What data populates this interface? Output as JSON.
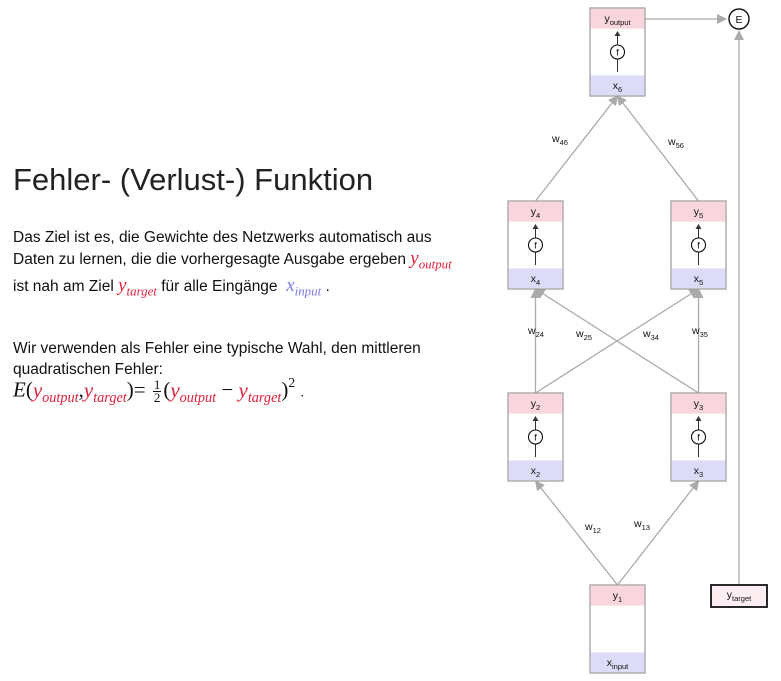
{
  "title": "Fehler- (Verlust-) Funktion",
  "paragraph1": {
    "text_a": "Das Ziel ist es, die Gewichte des Netzwerks automatisch aus Daten zu lernen, die die vorhergesagte Ausgabe ergeben",
    "y_output_base": "y",
    "y_output_sub": "output",
    "text_b": "ist nah am Ziel",
    "y_target_base": "y",
    "y_target_sub": "target",
    "text_c": "für alle Eingänge",
    "x_input_base": "x",
    "x_input_sub": "input",
    "text_d": "."
  },
  "paragraph2": {
    "text": "Wir verwenden als Fehler eine typische Wahl, den mittleren quadratischen Fehler:"
  },
  "formula": {
    "E": "E",
    "open": "(",
    "comma": ",",
    "close": ")=",
    "frac_num": "1",
    "frac_den": "2",
    "open2": "(",
    "minus": "−",
    "close2": ")",
    "power": "2",
    "end": "."
  },
  "diagram": {
    "nodes": [
      {
        "id": "n1",
        "top_base": "y",
        "top_sub": "1",
        "bottom_base": "x",
        "bottom_sub": "input",
        "has_f": false
      },
      {
        "id": "n2",
        "top_base": "y",
        "top_sub": "2",
        "bottom_base": "x",
        "bottom_sub": "2",
        "has_f": true
      },
      {
        "id": "n3",
        "top_base": "y",
        "top_sub": "3",
        "bottom_base": "x",
        "bottom_sub": "3",
        "has_f": true
      },
      {
        "id": "n4",
        "top_base": "y",
        "top_sub": "4",
        "bottom_base": "x",
        "bottom_sub": "4",
        "has_f": true
      },
      {
        "id": "n5",
        "top_base": "y",
        "top_sub": "5",
        "bottom_base": "x",
        "bottom_sub": "5",
        "has_f": true
      },
      {
        "id": "n6",
        "top_base": "y",
        "top_sub": "output",
        "bottom_base": "x",
        "bottom_sub": "6",
        "has_f": true
      }
    ],
    "f_label": "f",
    "error_label": "E",
    "target_base": "y",
    "target_sub": "target",
    "weights": [
      {
        "base": "w",
        "sub": "12"
      },
      {
        "base": "w",
        "sub": "13"
      },
      {
        "base": "w",
        "sub": "24"
      },
      {
        "base": "w",
        "sub": "25"
      },
      {
        "base": "w",
        "sub": "34"
      },
      {
        "base": "w",
        "sub": "35"
      },
      {
        "base": "w",
        "sub": "46"
      },
      {
        "base": "w",
        "sub": "56"
      }
    ],
    "colors": {
      "top_band": "#f9d5dd",
      "bottom_band": "#dcdcf8",
      "node_border": "#999999",
      "arrow": "#aaaaaa",
      "target_border": "#111111",
      "target_fill": "#fdeef1"
    }
  }
}
